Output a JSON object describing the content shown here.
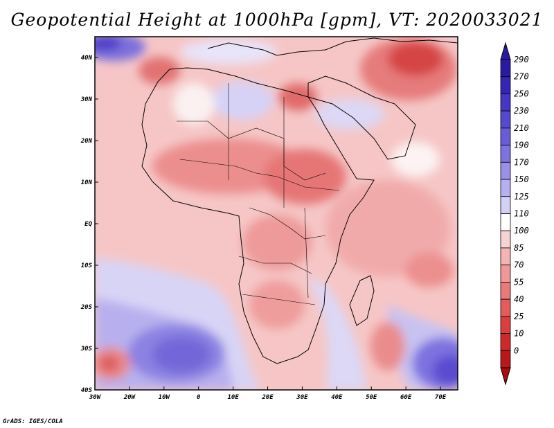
{
  "title": "Geopotential Height at 1000hPa [gpm], VT: 2020033021",
  "credit": "GrADS: IGES/COLA",
  "map": {
    "lon_range": [
      -30,
      75
    ],
    "lat_range": [
      -40,
      45
    ],
    "lon_ticks": [
      {
        "value": -30,
        "label": "30W"
      },
      {
        "value": -20,
        "label": "20W"
      },
      {
        "value": -10,
        "label": "10W"
      },
      {
        "value": 0,
        "label": "0"
      },
      {
        "value": 10,
        "label": "10E"
      },
      {
        "value": 20,
        "label": "20E"
      },
      {
        "value": 30,
        "label": "30E"
      },
      {
        "value": 40,
        "label": "40E"
      },
      {
        "value": 50,
        "label": "50E"
      },
      {
        "value": 60,
        "label": "60E"
      },
      {
        "value": 70,
        "label": "70E"
      }
    ],
    "lat_ticks": [
      {
        "value": 40,
        "label": "40N"
      },
      {
        "value": 30,
        "label": "30N"
      },
      {
        "value": 20,
        "label": "20N"
      },
      {
        "value": 10,
        "label": "10N"
      },
      {
        "value": 0,
        "label": "EQ"
      },
      {
        "value": -10,
        "label": "10S"
      },
      {
        "value": -20,
        "label": "20S"
      },
      {
        "value": -30,
        "label": "30S"
      },
      {
        "value": -40,
        "label": "40S"
      }
    ]
  },
  "legend": {
    "levels": [
      {
        "label": "290",
        "color": "#2a1aa0"
      },
      {
        "label": "270",
        "color": "#3624b4"
      },
      {
        "label": "250",
        "color": "#4636c4"
      },
      {
        "label": "230",
        "color": "#5648cf"
      },
      {
        "label": "210",
        "color": "#6a5cd8"
      },
      {
        "label": "190",
        "color": "#7d72df"
      },
      {
        "label": "170",
        "color": "#9a90e8"
      },
      {
        "label": "150",
        "color": "#b7b0f0"
      },
      {
        "label": "125",
        "color": "#d3d0f6"
      },
      {
        "label": "110",
        "color": "#ffffff"
      },
      {
        "label": "100",
        "color": "#f7d2d2"
      },
      {
        "label": "85",
        "color": "#f4b4b4"
      },
      {
        "label": "70",
        "color": "#ef9898"
      },
      {
        "label": "55",
        "color": "#ea7a7a"
      },
      {
        "label": "40",
        "color": "#e45c5c"
      },
      {
        "label": "25",
        "color": "#dc3e3e"
      },
      {
        "label": "10",
        "color": "#cf2828"
      },
      {
        "label": "0",
        "color": "#b81818"
      }
    ],
    "bottom_color": "#a81010"
  }
}
